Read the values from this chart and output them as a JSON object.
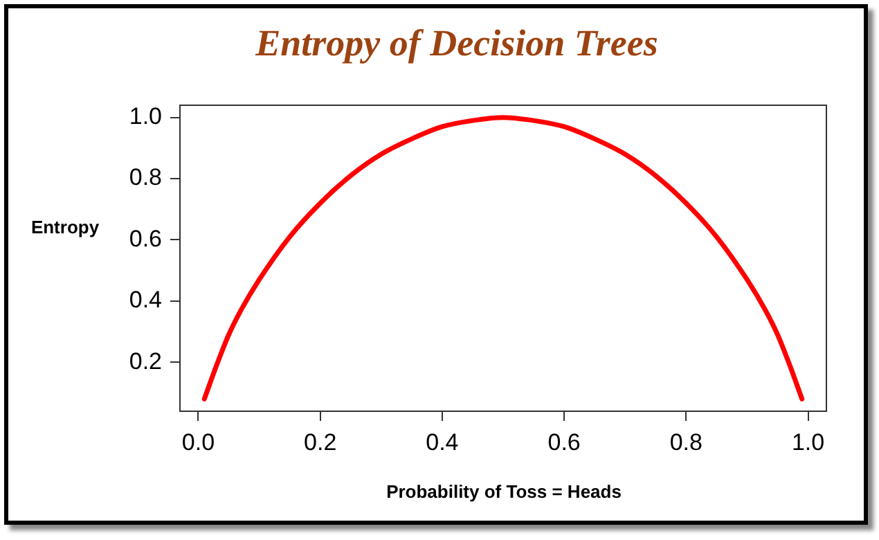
{
  "chart_data": {
    "type": "line",
    "title": "Entropy of Decision Trees",
    "xlabel": "Probability of Toss = Heads",
    "ylabel": "Entropy",
    "x": [
      0.01,
      0.03,
      0.05,
      0.07,
      0.1,
      0.15,
      0.2,
      0.25,
      0.3,
      0.35,
      0.4,
      0.45,
      0.5,
      0.55,
      0.6,
      0.65,
      0.7,
      0.75,
      0.8,
      0.85,
      0.9,
      0.93,
      0.95,
      0.97,
      0.99
    ],
    "series": [
      {
        "color": "#ff0000",
        "values": [
          0.08,
          0.19,
          0.29,
          0.37,
          0.47,
          0.61,
          0.72,
          0.81,
          0.88,
          0.93,
          0.97,
          0.99,
          1.0,
          0.99,
          0.97,
          0.93,
          0.88,
          0.81,
          0.72,
          0.61,
          0.47,
          0.37,
          0.29,
          0.19,
          0.08
        ]
      }
    ],
    "xlim": [
      -0.03,
      1.03
    ],
    "xticks": [
      {
        "value": 0,
        "label": "0.0"
      },
      0.2,
      0.4,
      0.6,
      0.8,
      {
        "value": 1,
        "label": "1.0"
      }
    ],
    "ylim": [
      0.04,
      1.04
    ],
    "yticks": [
      0.2,
      0.4,
      0.6,
      0.8,
      {
        "value": 1,
        "label": "1.0"
      }
    ],
    "grid": false,
    "legend": false,
    "marker": "none",
    "line_style": "solid"
  }
}
